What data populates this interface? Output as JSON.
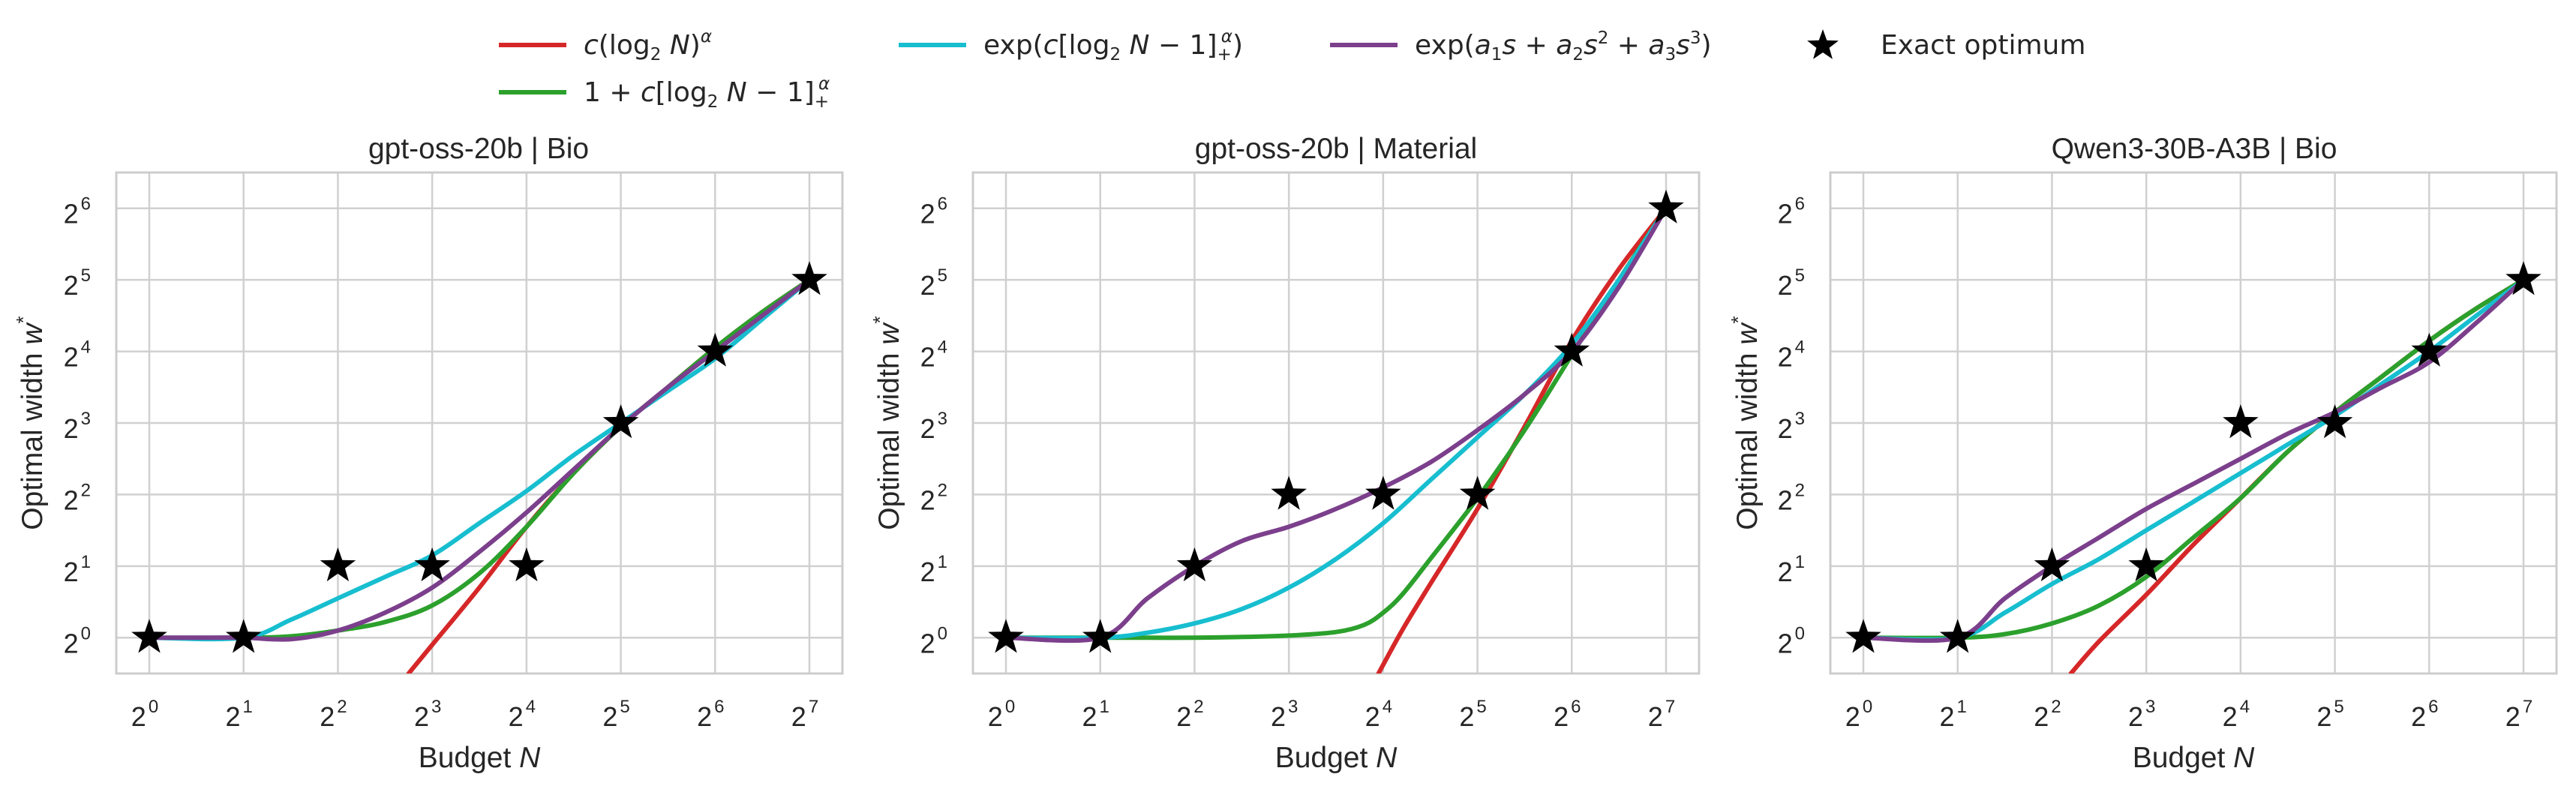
{
  "legend": {
    "entries": [
      {
        "key": "red",
        "label": "c(log₂ N)^α",
        "color": "#d62728"
      },
      {
        "key": "cyan",
        "label": "exp(c[log₂ N − 1]₊^α)",
        "color": "#17becf"
      },
      {
        "key": "purple",
        "label": "exp(a₁s + a₂s² + a₃s³)",
        "color": "#7b3f8c"
      },
      {
        "key": "star",
        "label": "Exact optimum",
        "color": "#000000"
      },
      {
        "key": "green",
        "label": "1 + c[log₂ N − 1]₊^α",
        "color": "#2ca02c"
      }
    ]
  },
  "chart_data": [
    {
      "type": "line",
      "title": "gpt-oss-20b | Bio",
      "xlabel": "Budget N",
      "ylabel": "Optimal width w*",
      "x_scale": "log2",
      "y_scale": "log2",
      "x_tick_exponents": [
        0,
        1,
        2,
        3,
        4,
        5,
        6,
        7
      ],
      "y_tick_exponents": [
        0,
        1,
        2,
        3,
        4,
        5,
        6
      ],
      "xlim_log2": [
        -0.35,
        7.35
      ],
      "ylim_log2": [
        -0.5,
        6.5
      ],
      "grid": true,
      "exact_optimum": {
        "x_log2": [
          0,
          1,
          2,
          3,
          4,
          5,
          6,
          7
        ],
        "y_log2": [
          0,
          0,
          1,
          1,
          1,
          3,
          4,
          5
        ]
      },
      "series": [
        {
          "key": "red",
          "x_log2": [
            2.75,
            3,
            3.5,
            4,
            4.5,
            5,
            5.5,
            6,
            6.5,
            7
          ],
          "y_log2": [
            -0.5,
            -0.1,
            0.7,
            1.55,
            2.3,
            2.95,
            3.5,
            4.05,
            4.55,
            5
          ]
        },
        {
          "key": "green",
          "x_log2": [
            0,
            1,
            1.5,
            2,
            2.5,
            3,
            3.5,
            4,
            4.5,
            5,
            5.5,
            6,
            6.5,
            7
          ],
          "y_log2": [
            0,
            0,
            0.02,
            0.1,
            0.22,
            0.45,
            0.9,
            1.55,
            2.3,
            2.95,
            3.5,
            4.05,
            4.55,
            5
          ]
        },
        {
          "key": "cyan",
          "x_log2": [
            0,
            1,
            1.5,
            2,
            2.5,
            3,
            3.5,
            4,
            4.5,
            5,
            5.5,
            6,
            6.5,
            7
          ],
          "y_log2": [
            0,
            0,
            0.25,
            0.55,
            0.85,
            1.15,
            1.6,
            2.05,
            2.55,
            3.0,
            3.45,
            3.9,
            4.45,
            5
          ]
        },
        {
          "key": "purple",
          "x_log2": [
            0,
            0.5,
            1,
            1.5,
            2,
            2.5,
            3,
            3.5,
            4,
            4.5,
            5,
            5.5,
            6,
            6.5,
            7
          ],
          "y_log2": [
            0,
            0,
            0,
            -0.02,
            0.1,
            0.35,
            0.7,
            1.2,
            1.75,
            2.35,
            2.95,
            3.5,
            4.0,
            4.5,
            5
          ]
        }
      ]
    },
    {
      "type": "line",
      "title": "gpt-oss-20b | Material",
      "xlabel": "Budget N",
      "ylabel": "Optimal width w*",
      "x_scale": "log2",
      "y_scale": "log2",
      "x_tick_exponents": [
        0,
        1,
        2,
        3,
        4,
        5,
        6,
        7
      ],
      "y_tick_exponents": [
        0,
        1,
        2,
        3,
        4,
        5,
        6
      ],
      "xlim_log2": [
        -0.35,
        7.35
      ],
      "ylim_log2": [
        -0.5,
        6.5
      ],
      "grid": true,
      "exact_optimum": {
        "x_log2": [
          0,
          1,
          2,
          3,
          4,
          5,
          6,
          7
        ],
        "y_log2": [
          0,
          0,
          1,
          2,
          2,
          2,
          4,
          6
        ]
      },
      "series": [
        {
          "key": "red",
          "x_log2": [
            3.95,
            4.2,
            4.5,
            5,
            5.5,
            6,
            6.5,
            7
          ],
          "y_log2": [
            -0.5,
            0.1,
            0.75,
            1.8,
            2.95,
            4.15,
            5.15,
            6
          ]
        },
        {
          "key": "green",
          "x_log2": [
            0,
            1,
            1.5,
            2,
            2.5,
            3,
            3.5,
            3.8,
            4,
            4.2,
            4.5,
            5,
            5.5,
            6,
            6.5,
            7
          ],
          "y_log2": [
            0,
            0,
            0,
            0,
            0.01,
            0.03,
            0.08,
            0.18,
            0.35,
            0.6,
            1.1,
            1.95,
            2.9,
            3.95,
            5.0,
            6
          ]
        },
        {
          "key": "cyan",
          "x_log2": [
            0,
            1,
            1.5,
            2,
            2.5,
            3,
            3.5,
            4,
            4.5,
            5,
            5.5,
            6,
            6.5,
            7
          ],
          "y_log2": [
            0,
            0,
            0.07,
            0.2,
            0.4,
            0.7,
            1.1,
            1.6,
            2.2,
            2.8,
            3.4,
            4.1,
            5.0,
            6
          ]
        },
        {
          "key": "purple",
          "x_log2": [
            0,
            1,
            1.5,
            2,
            2.5,
            3,
            3.5,
            4,
            4.5,
            5,
            5.5,
            6,
            6.5,
            7
          ],
          "y_log2": [
            0,
            0,
            0.55,
            1.0,
            1.35,
            1.55,
            1.8,
            2.1,
            2.45,
            2.9,
            3.4,
            4.0,
            4.9,
            6
          ]
        }
      ]
    },
    {
      "type": "line",
      "title": "Qwen3-30B-A3B | Bio",
      "xlabel": "Budget N",
      "ylabel": "Optimal width w*",
      "x_scale": "log2",
      "y_scale": "log2",
      "x_tick_exponents": [
        0,
        1,
        2,
        3,
        4,
        5,
        6,
        7
      ],
      "y_tick_exponents": [
        0,
        1,
        2,
        3,
        4,
        5,
        6
      ],
      "xlim_log2": [
        -0.35,
        7.35
      ],
      "ylim_log2": [
        -0.5,
        6.5
      ],
      "grid": true,
      "exact_optimum": {
        "x_log2": [
          0,
          1,
          2,
          3,
          4,
          5,
          6,
          7
        ],
        "y_log2": [
          0,
          0,
          1,
          1,
          3,
          3,
          4,
          5
        ]
      },
      "series": [
        {
          "key": "red",
          "x_log2": [
            2.2,
            2.5,
            3,
            3.5,
            4,
            4.5,
            5,
            5.5,
            6,
            6.5,
            7
          ],
          "y_log2": [
            -0.5,
            -0.05,
            0.6,
            1.3,
            1.95,
            2.6,
            3.15,
            3.65,
            4.15,
            4.6,
            5
          ]
        },
        {
          "key": "green",
          "x_log2": [
            0,
            1,
            1.5,
            2,
            2.5,
            3,
            3.5,
            4,
            4.5,
            5,
            5.5,
            6,
            6.5,
            7
          ],
          "y_log2": [
            0,
            0,
            0.05,
            0.2,
            0.45,
            0.85,
            1.4,
            1.95,
            2.6,
            3.15,
            3.65,
            4.15,
            4.6,
            5
          ]
        },
        {
          "key": "cyan",
          "x_log2": [
            0,
            1,
            1.5,
            2,
            2.5,
            3,
            3.5,
            4,
            4.5,
            5,
            5.5,
            6,
            6.5,
            7
          ],
          "y_log2": [
            0,
            0,
            0.35,
            0.75,
            1.1,
            1.5,
            1.9,
            2.3,
            2.7,
            3.1,
            3.55,
            4.0,
            4.5,
            5
          ]
        },
        {
          "key": "purple",
          "x_log2": [
            0,
            1,
            1.5,
            2,
            2.5,
            3,
            3.5,
            4,
            4.5,
            5,
            5.5,
            6,
            6.5,
            7
          ],
          "y_log2": [
            0,
            0,
            0.55,
            1.0,
            1.4,
            1.8,
            2.15,
            2.5,
            2.85,
            3.15,
            3.5,
            3.85,
            4.4,
            5
          ]
        }
      ]
    }
  ]
}
